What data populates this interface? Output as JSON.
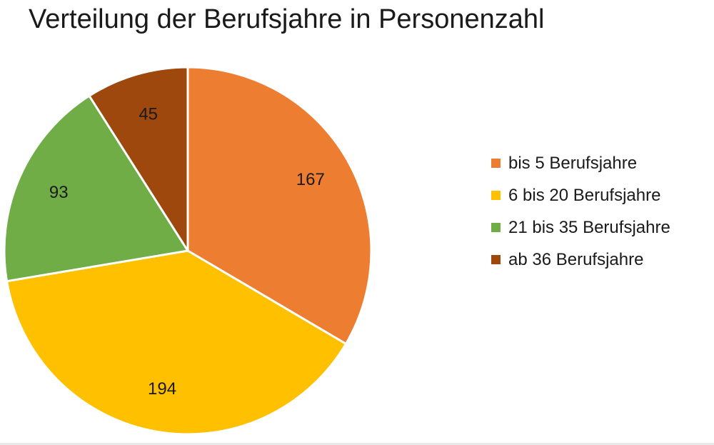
{
  "chart_data": {
    "type": "pie",
    "title": "Verteilung der Berufsjahre in Personenzahl",
    "categories": [
      "bis 5 Berufsjahre",
      "6 bis 20 Berufsjahre",
      "21 bis 35 Berufsjahre",
      "ab 36 Berufsjahre"
    ],
    "values": [
      167,
      194,
      93,
      45
    ],
    "colors": [
      "#ED7D31",
      "#FFC000",
      "#70AD47",
      "#9E480E"
    ],
    "start_angle_deg": 0,
    "direction": "clockwise",
    "legend_position": "right",
    "data_labels": true
  }
}
